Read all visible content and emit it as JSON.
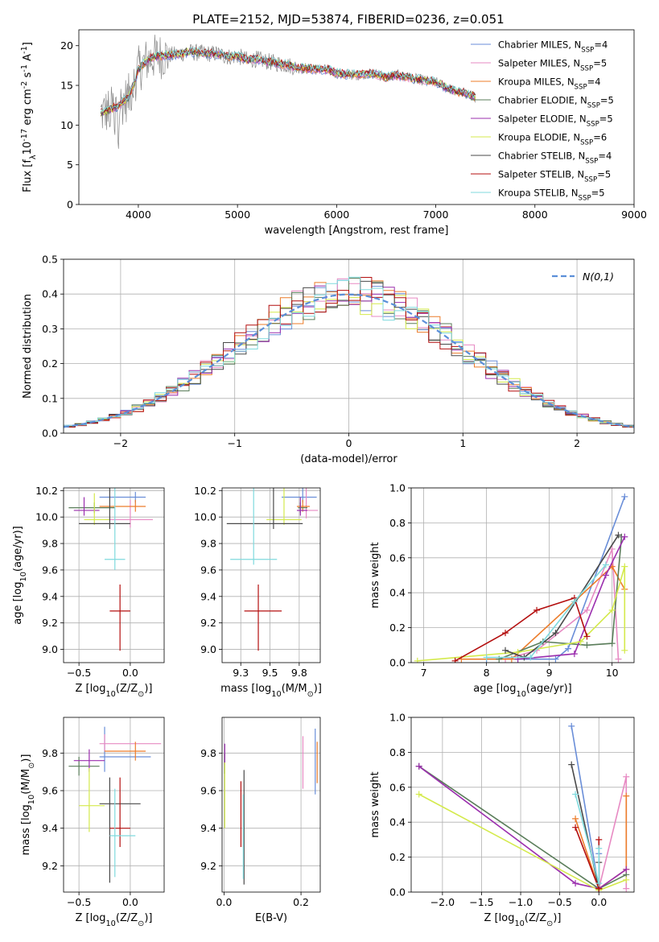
{
  "figure": {
    "title": "PLATE=2152, MJD=53874, FIBERID=0236, z=0.051"
  },
  "models": [
    {
      "label": "Chabrier MILES, N$_{SSP}$=4",
      "color": "#6a8ed8"
    },
    {
      "label": "Salpeter MILES, N$_{SSP}$=5",
      "color": "#e78ac3"
    },
    {
      "label": "Kroupa MILES, N$_{SSP}$=4",
      "color": "#ec7c2a"
    },
    {
      "label": "Chabrier ELODIE, N$_{SSP}$=5",
      "color": "#5a7d5a"
    },
    {
      "label": "Salpeter ELODIE, N$_{SSP}$=5",
      "color": "#9b2fae"
    },
    {
      "label": "Kroupa ELODIE, N$_{SSP}$=6",
      "color": "#d4ea4c"
    },
    {
      "label": "Chabrier STELIB, N$_{SSP}$=4",
      "color": "#4a4a4a"
    },
    {
      "label": "Salpeter STELIB, N$_{SSP}$=5",
      "color": "#b40f0f"
    },
    {
      "label": "Kroupa STELIB, N$_{SSP}$=5",
      "color": "#7fdadd"
    }
  ],
  "chart_data": [
    {
      "id": "spectrum",
      "type": "line",
      "xlabel": "wavelength [Angstrom, rest frame]",
      "ylabel": "Flux [f$_\\lambda$10$^{-17}$ erg cm$^{-2}$ s$^{-1}$ A$^{-1}$]",
      "xlim": [
        3400,
        9000
      ],
      "ylim": [
        0,
        22
      ],
      "xticks": [
        4000,
        5000,
        6000,
        7000,
        8000,
        9000
      ],
      "yticks": [
        0,
        5,
        10,
        15,
        20
      ],
      "grid": false,
      "legend": "right",
      "data_color": "#888888",
      "data_x": [
        3620,
        3700,
        3800,
        3900,
        3950,
        4000,
        4100,
        4200,
        4300,
        4400,
        4500,
        4600,
        4700,
        4800,
        4900,
        5000,
        5100,
        5200,
        5300,
        5400,
        5500,
        5600,
        5700,
        5800,
        5900,
        6000,
        6100,
        6200,
        6300,
        6400,
        6500,
        6600,
        6700,
        6800,
        6900,
        7000,
        7100,
        7200,
        7300,
        7400
      ],
      "data_y": [
        11.5,
        11.8,
        12.5,
        13.5,
        15,
        17,
        18.3,
        18.7,
        18.8,
        18.9,
        19.2,
        19.1,
        19.0,
        19.0,
        18.6,
        18.7,
        18.2,
        18.3,
        18.0,
        17.8,
        17.6,
        17.2,
        17.1,
        17.0,
        17.0,
        16.5,
        16.4,
        16.3,
        16.5,
        16.4,
        16.0,
        16.3,
        16.1,
        15.8,
        15.6,
        15.4,
        14.8,
        14.2,
        14.0,
        13.5
      ]
    },
    {
      "id": "residuals",
      "type": "histogram",
      "xlabel": "(data-model)/error",
      "ylabel": "Normed distribution",
      "xlim": [
        -2.5,
        2.5
      ],
      "ylim": [
        0,
        0.5
      ],
      "xticks": [
        -2,
        -1,
        0,
        1,
        2
      ],
      "yticks": [
        0.0,
        0.1,
        0.2,
        0.3,
        0.4,
        0.5
      ],
      "grid": true,
      "legend": "top-right",
      "reference_label": "$\\mathcal{N}(0,1)$",
      "reference_color": "#5b8fd8",
      "bin_width": 0.1
    },
    {
      "id": "age-vs-z",
      "type": "errorbar",
      "xlabel": "Z [log$_{10}$(Z/Z$_\\odot$)]",
      "ylabel": "age  [log$_{10}$(age/yr)]",
      "xlim": [
        -0.65,
        0.33
      ],
      "ylim": [
        8.9,
        10.22
      ],
      "xticks": [
        -0.5,
        0.0
      ],
      "yticks": [
        9.0,
        9.2,
        9.4,
        9.6,
        9.8,
        10.0,
        10.2
      ],
      "grid": true,
      "points": [
        {
          "x": 0.05,
          "xerr": [
            0.35,
            0.1
          ],
          "y": 10.15,
          "yerr": [
            0.04,
            0.04
          ]
        },
        {
          "x": -0.0,
          "xerr": [
            0.25,
            0.22
          ],
          "y": 9.98,
          "yerr": [
            0.06,
            0.15
          ]
        },
        {
          "x": 0.05,
          "xerr": [
            0.35,
            0.1
          ],
          "y": 10.08,
          "yerr": [
            0.04,
            0.05
          ]
        },
        {
          "x": -0.35,
          "xerr": [
            0.25,
            0.2
          ],
          "y": 10.07,
          "yerr": [
            0.04,
            0.04
          ]
        },
        {
          "x": -0.45,
          "xerr": [
            0.1,
            0.15
          ],
          "y": 10.05,
          "yerr": [
            0.04,
            0.1
          ]
        },
        {
          "x": -0.35,
          "xerr": [
            0.1,
            0.15
          ],
          "y": 9.98,
          "yerr": [
            0.04,
            0.2
          ]
        },
        {
          "x": -0.2,
          "xerr": [
            0.3,
            0.2
          ],
          "y": 9.95,
          "yerr": [
            0.04,
            0.98
          ]
        },
        {
          "x": -0.1,
          "xerr": [
            0.1,
            0.1
          ],
          "y": 9.29,
          "yerr": [
            0.3,
            0.2
          ]
        },
        {
          "x": -0.15,
          "xerr": [
            0.1,
            0.1
          ],
          "y": 9.68,
          "yerr": [
            0.08,
            0.75
          ]
        }
      ]
    },
    {
      "id": "age-vs-mass",
      "type": "errorbar",
      "xlabel": "mass [log$_{10}$(M/M$_\\odot$)]",
      "ylabel": "",
      "xlim": [
        9.09,
        9.93
      ],
      "ylim": [
        8.9,
        10.22
      ],
      "xticks": [
        9.25,
        9.5,
        9.75
      ],
      "yticks": [
        9.0,
        9.2,
        9.4,
        9.6,
        9.8,
        10.0,
        10.2
      ],
      "grid": true,
      "points": [
        {
          "x": 9.78,
          "xerr": [
            0.18,
            0.12
          ],
          "y": 10.15,
          "yerr": [
            0.04,
            0.15
          ]
        },
        {
          "x": 9.81,
          "xerr": [
            0.05,
            0.1
          ],
          "y": 10.05,
          "yerr": [
            0.06,
            0.19
          ]
        },
        {
          "x": 9.78,
          "xerr": [
            0.05,
            0.06
          ],
          "y": 10.08,
          "yerr": [
            0.04,
            0.05
          ]
        },
        {
          "x": 9.76,
          "xerr": [
            0.02,
            0.06
          ],
          "y": 10.07,
          "yerr": [
            0.04,
            0.04
          ]
        },
        {
          "x": 9.76,
          "xerr": [
            0.03,
            0.06
          ],
          "y": 10.05,
          "yerr": [
            0.04,
            0.1
          ]
        },
        {
          "x": 9.62,
          "xerr": [
            0.15,
            0.15
          ],
          "y": 9.98,
          "yerr": [
            0.04,
            0.25
          ]
        },
        {
          "x": 9.53,
          "xerr": [
            0.4,
            0.25
          ],
          "y": 9.95,
          "yerr": [
            0.04,
            0.99
          ]
        },
        {
          "x": 9.4,
          "xerr": [
            0.12,
            0.2
          ],
          "y": 9.29,
          "yerr": [
            0.3,
            0.2
          ]
        },
        {
          "x": 9.36,
          "xerr": [
            0.2,
            0.2
          ],
          "y": 9.68,
          "yerr": [
            0.04,
            0.75
          ]
        }
      ]
    },
    {
      "id": "weight-vs-age",
      "type": "line",
      "xlabel": "age  [log$_{10}$(age/yr)]",
      "ylabel": "mass weight",
      "xlim": [
        6.8,
        10.35
      ],
      "ylim": [
        0,
        1
      ],
      "xticks": [
        7,
        8,
        9,
        10
      ],
      "yticks": [
        0.0,
        0.2,
        0.4,
        0.6,
        0.8,
        1.0
      ],
      "grid": true,
      "series": [
        {
          "x": [
            8.0,
            9.1,
            9.3,
            10.2
          ],
          "y": [
            0.02,
            0.02,
            0.08,
            0.95
          ]
        },
        {
          "x": [
            8.3,
            8.8,
            9.6,
            10.0,
            10.1
          ],
          "y": [
            0.02,
            0.07,
            0.3,
            0.65,
            0.02
          ]
        },
        {
          "x": [
            7.6,
            8.4,
            9.4,
            10.0,
            10.2
          ],
          "y": [
            0.02,
            0.02,
            0.35,
            0.55,
            0.42
          ]
        },
        {
          "x": [
            8.2,
            8.9,
            9.6,
            10.0,
            10.15
          ],
          "y": [
            0.02,
            0.12,
            0.1,
            0.11,
            0.72
          ]
        },
        {
          "x": [
            8.5,
            9.4,
            9.9,
            10.2
          ],
          "y": [
            0.02,
            0.05,
            0.5,
            0.72
          ]
        },
        {
          "x": [
            6.9,
            8.5,
            9.5,
            10.0,
            10.2,
            10.2
          ],
          "y": [
            0.01,
            0.06,
            0.12,
            0.3,
            0.55,
            0.07
          ]
        },
        {
          "x": [
            8.3,
            8.6,
            9.1,
            10.1
          ],
          "y": [
            0.07,
            0.03,
            0.17,
            0.73
          ]
        },
        {
          "x": [
            7.5,
            8.3,
            8.8,
            9.4,
            9.6
          ],
          "y": [
            0.01,
            0.17,
            0.3,
            0.37,
            0.15
          ]
        },
        {
          "x": [
            8.0,
            8.7,
            9.4,
            9.9
          ],
          "y": [
            0.03,
            0.03,
            0.35,
            0.56
          ]
        }
      ]
    },
    {
      "id": "mass-vs-z",
      "type": "errorbar",
      "xlabel": "Z [log$_{10}$(Z/Z$_\\odot$)]",
      "ylabel": "mass [log$_{10}$(M/M$_\\odot$)]",
      "xlim": [
        -0.65,
        0.33
      ],
      "ylim": [
        9.06,
        9.99
      ],
      "xticks": [
        -0.5,
        0.0
      ],
      "yticks": [
        9.2,
        9.4,
        9.6,
        9.8
      ],
      "grid": true,
      "points": [
        {
          "x": -0.25,
          "xerr": [
            0.05,
            0.45
          ],
          "y": 9.78,
          "yerr": [
            0.08,
            0.16
          ]
        },
        {
          "x": -0.25,
          "xerr": [
            0.05,
            0.55
          ],
          "y": 9.85,
          "yerr": [
            0.04,
            0.05
          ]
        },
        {
          "x": 0.05,
          "xerr": [
            0.3,
            0.1
          ],
          "y": 9.81,
          "yerr": [
            0.05,
            0.05
          ]
        },
        {
          "x": -0.5,
          "xerr": [
            0.1,
            0.2
          ],
          "y": 9.73,
          "yerr": [
            0.05,
            0.05
          ]
        },
        {
          "x": -0.4,
          "xerr": [
            0.15,
            0.15
          ],
          "y": 9.76,
          "yerr": [
            0.06,
            0.06
          ]
        },
        {
          "x": -0.4,
          "xerr": [
            0.1,
            0.15
          ],
          "y": 9.52,
          "yerr": [
            0.14,
            0.2
          ]
        },
        {
          "x": -0.2,
          "xerr": [
            0.1,
            0.3
          ],
          "y": 9.53,
          "yerr": [
            0.42,
            0.14
          ]
        },
        {
          "x": -0.1,
          "xerr": [
            0.1,
            0.1
          ],
          "y": 9.4,
          "yerr": [
            0.1,
            0.27
          ]
        },
        {
          "x": -0.15,
          "xerr": [
            0.05,
            0.2
          ],
          "y": 9.36,
          "yerr": [
            0.22,
            0.25
          ]
        }
      ]
    },
    {
      "id": "mass-vs-ebv",
      "type": "errorbar",
      "xlabel": "E(B-V)",
      "ylabel": "",
      "xlim": [
        -0.005,
        0.25
      ],
      "ylim": [
        9.06,
        9.99
      ],
      "xticks": [
        0.0,
        0.2
      ],
      "yticks": [
        9.2,
        9.4,
        9.6,
        9.8
      ],
      "grid": true,
      "points": [
        {
          "x": 0.237,
          "xerr": [
            0,
            0
          ],
          "y": 9.78,
          "yerr": [
            0.2,
            0.15
          ]
        },
        {
          "x": 0.205,
          "xerr": [
            0,
            0
          ],
          "y": 9.78,
          "yerr": [
            0.17,
            0.11
          ]
        },
        {
          "x": 0.242,
          "xerr": [
            0,
            0
          ],
          "y": 9.78,
          "yerr": [
            0.14,
            0.08
          ]
        },
        {
          "x": 0.002,
          "xerr": [
            0,
            0
          ],
          "y": 9.75,
          "yerr": [
            0.06,
            0.05
          ]
        },
        {
          "x": 0.002,
          "xerr": [
            0,
            0
          ],
          "y": 9.78,
          "yerr": [
            0.04,
            0.07
          ]
        },
        {
          "x": 0.002,
          "xerr": [
            0,
            0
          ],
          "y": 9.55,
          "yerr": [
            0.15,
            0.2
          ]
        },
        {
          "x": 0.052,
          "xerr": [
            0,
            0
          ],
          "y": 9.45,
          "yerr": [
            0.35,
            0.26
          ]
        },
        {
          "x": 0.044,
          "xerr": [
            0,
            0
          ],
          "y": 9.45,
          "yerr": [
            0.15,
            0.2
          ]
        },
        {
          "x": 0.05,
          "xerr": [
            0,
            0
          ],
          "y": 9.38,
          "yerr": [
            0.25,
            0.2
          ]
        }
      ]
    },
    {
      "id": "weight-vs-z",
      "type": "line",
      "xlabel": "Z [log$_{10}$(Z/Z$_\\odot$)]",
      "ylabel": "mass weight",
      "xlim": [
        -2.4,
        0.45
      ],
      "ylim": [
        0,
        1
      ],
      "xticks": [
        -2.0,
        -1.5,
        -1.0,
        -0.5,
        0.0
      ],
      "yticks": [
        0.0,
        0.2,
        0.4,
        0.6,
        0.8,
        1.0
      ],
      "grid": true,
      "series": [
        {
          "x": [
            -0.35,
            0.0,
            0.0
          ],
          "y": [
            0.95,
            0.02,
            0.22
          ]
        },
        {
          "x": [
            0.0,
            0.35,
            0.35
          ],
          "y": [
            0.02,
            0.66,
            0.02
          ]
        },
        {
          "x": [
            -0.3,
            0.0,
            0.35,
            0.35
          ],
          "y": [
            0.42,
            0.02,
            0.13,
            0.55
          ]
        },
        {
          "x": [
            -2.3,
            0.0,
            0.35
          ],
          "y": [
            0.72,
            0.02,
            0.1
          ]
        },
        {
          "x": [
            -2.3,
            -0.3,
            0.0,
            0.35
          ],
          "y": [
            0.72,
            0.05,
            0.02,
            0.13
          ]
        },
        {
          "x": [
            -2.3,
            0.0,
            0.35
          ],
          "y": [
            0.56,
            0.01,
            0.07
          ]
        },
        {
          "x": [
            -0.35,
            0.0,
            0.0
          ],
          "y": [
            0.73,
            0.02,
            0.17
          ]
        },
        {
          "x": [
            -0.3,
            0.0,
            0.0
          ],
          "y": [
            0.37,
            0.02,
            0.3
          ]
        },
        {
          "x": [
            -0.3,
            0.0,
            0.0
          ],
          "y": [
            0.56,
            0.05,
            0.25
          ]
        }
      ]
    }
  ]
}
